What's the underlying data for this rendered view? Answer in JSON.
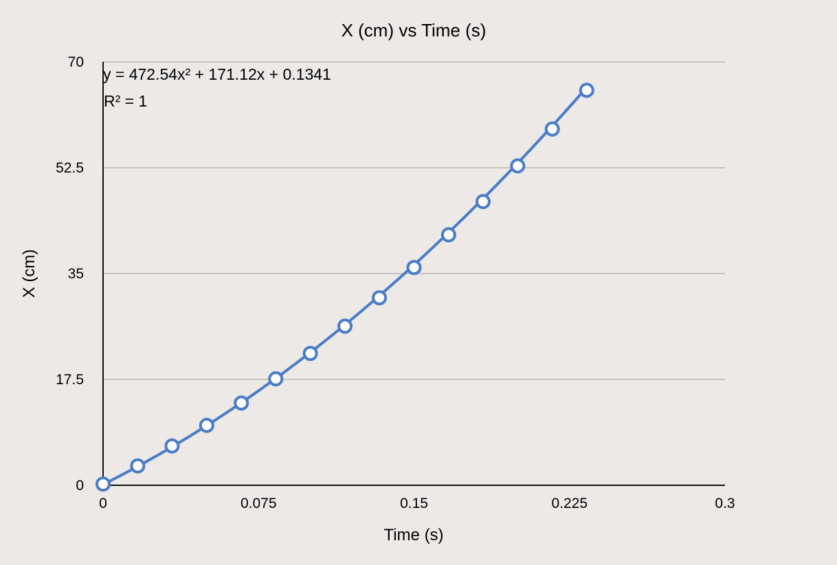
{
  "chart_data": {
    "type": "scatter",
    "title": "X (cm) vs Time (s)",
    "xlabel": "Time (s)",
    "ylabel": "X (cm)",
    "xlim": [
      0,
      0.3
    ],
    "ylim": [
      0,
      70
    ],
    "x_ticks": [
      "0",
      "0.075",
      "0.15",
      "0.225",
      "0.3"
    ],
    "y_ticks": [
      "0",
      "17.5",
      "35",
      "52.5",
      "70"
    ],
    "grid": "horizontal",
    "legend": "none",
    "series": [
      {
        "x": [
          0,
          0.0167,
          0.0333,
          0.05,
          0.0667,
          0.0833,
          0.1,
          0.1167,
          0.1333,
          0.15,
          0.1667,
          0.1833,
          0.2,
          0.2167,
          0.2333
        ],
        "y": [
          0.2,
          3.2,
          6.5,
          9.9,
          13.6,
          17.6,
          21.8,
          26.3,
          31.0,
          36.0,
          41.4,
          46.9,
          52.8,
          58.9,
          65.3
        ],
        "color": "#4a7cc7",
        "marker": "open-circle",
        "trendline": "polynomial-2"
      }
    ],
    "annotations": [
      "y = 472.54x² + 171.12x + 0.1341",
      "R² = 1"
    ],
    "trendline_coefficients": [
      472.54,
      171.12,
      0.1341
    ]
  }
}
